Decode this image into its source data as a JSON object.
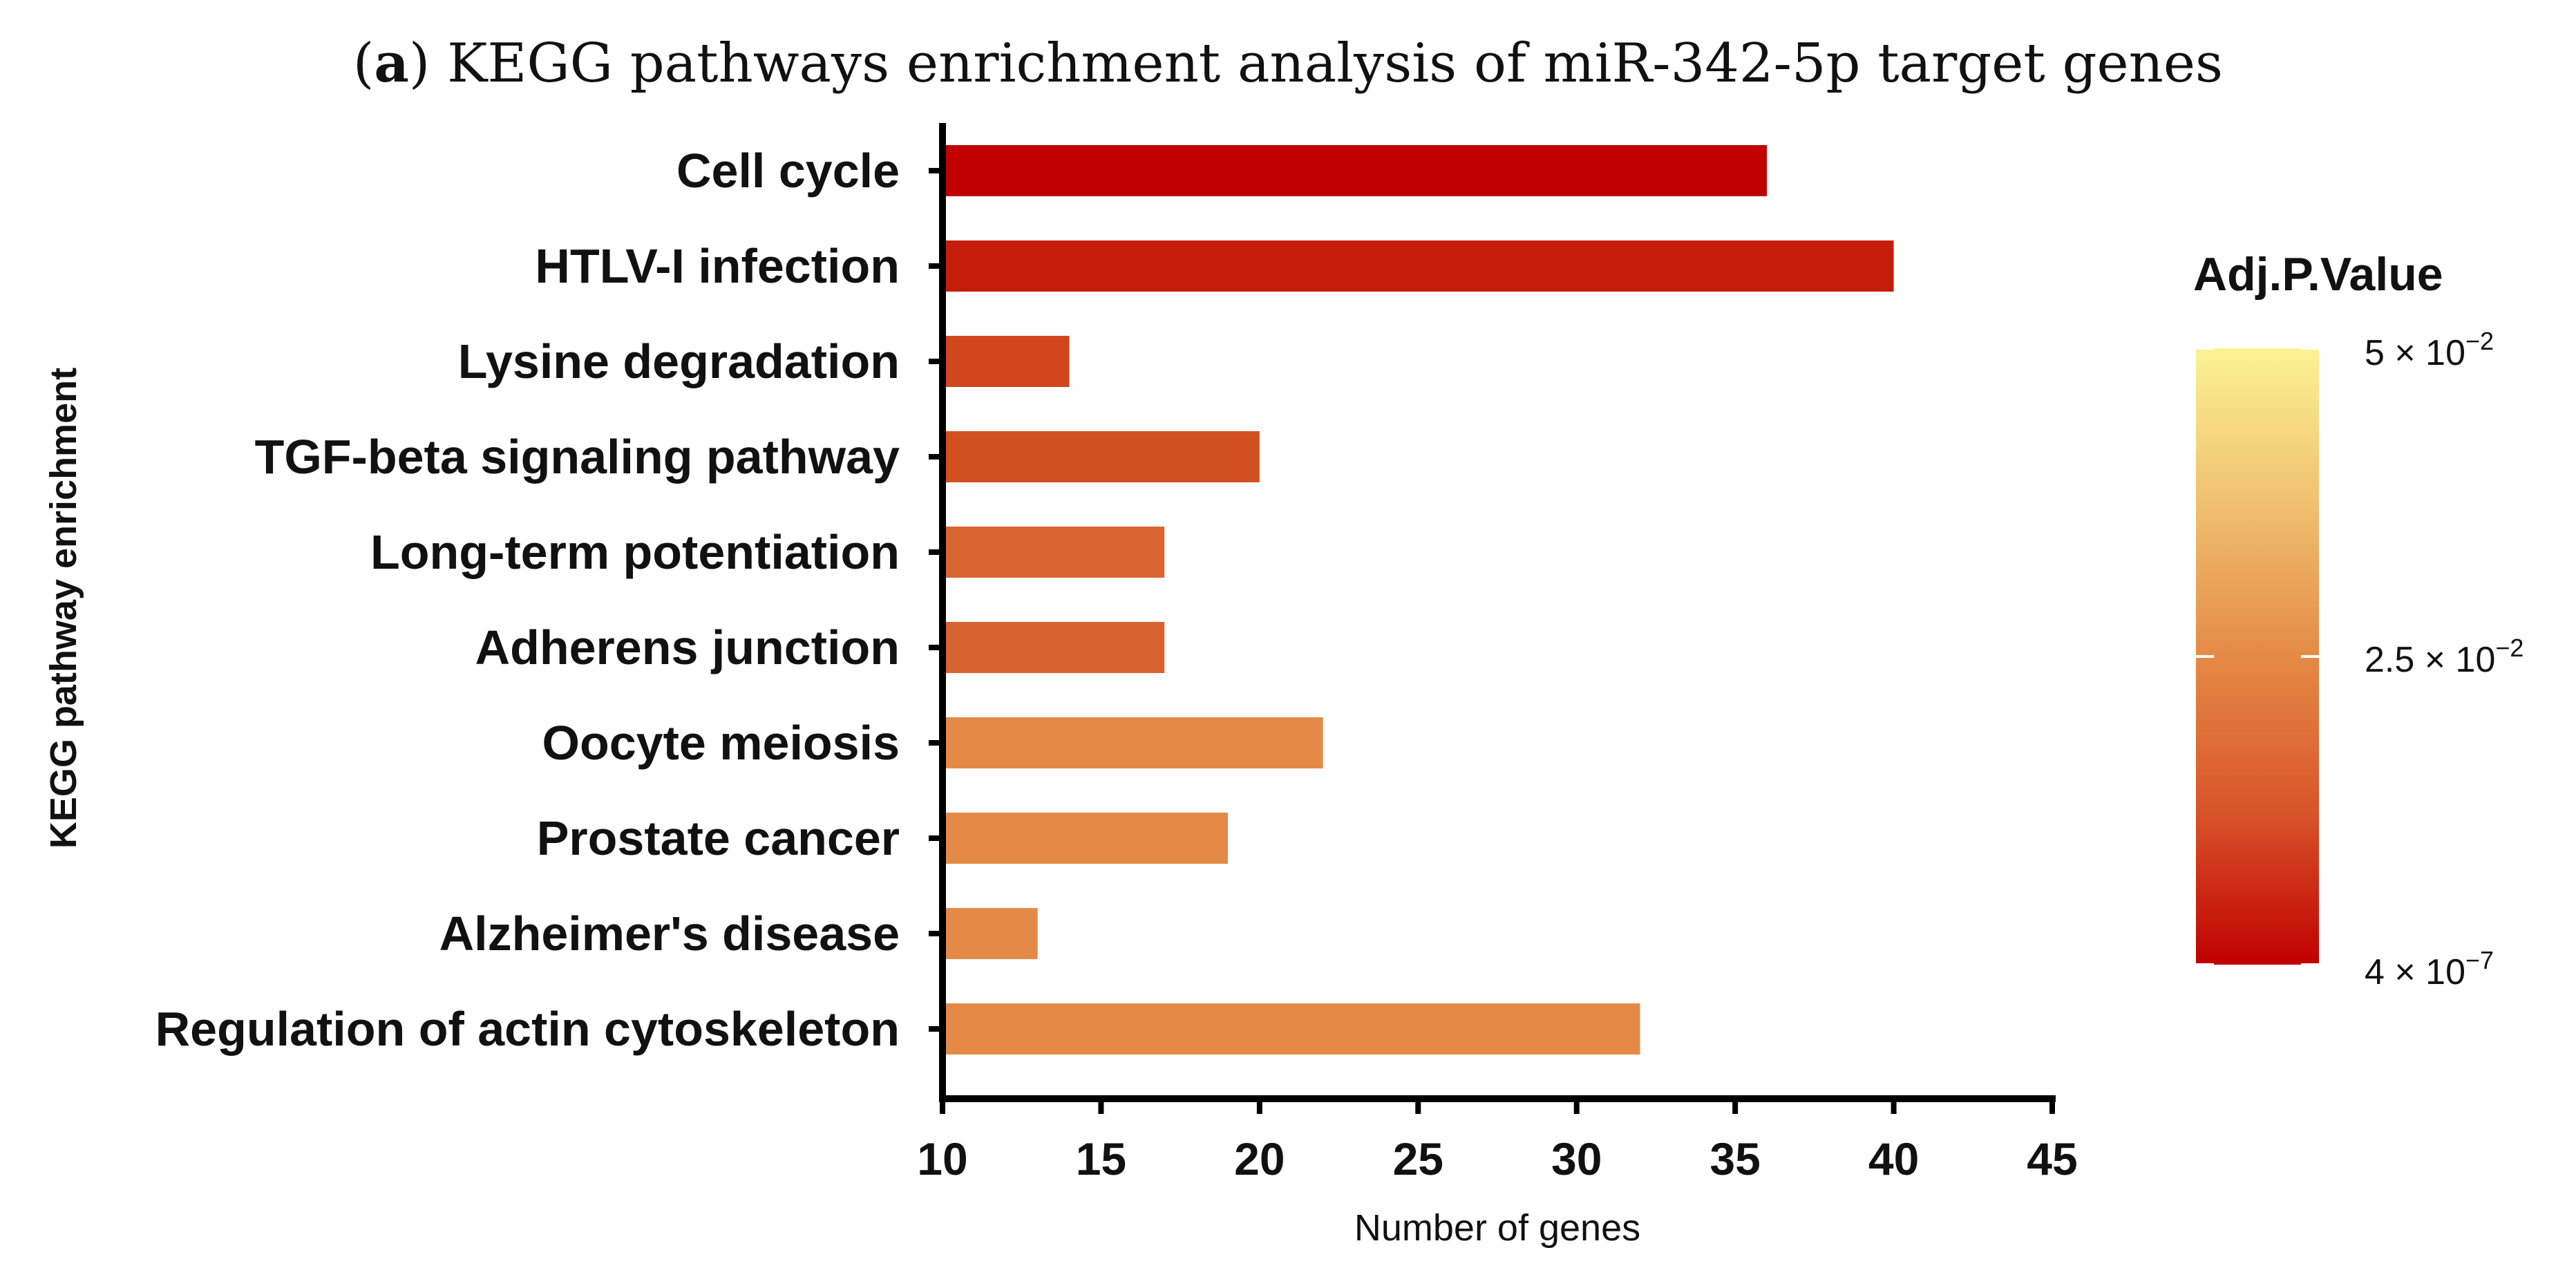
{
  "chart_data": {
    "type": "bar",
    "orientation": "horizontal",
    "title": {
      "prefix": "(",
      "letter": "a",
      "suffix": ") KEGG pathways enrichment analysis of miR-342-5p target genes"
    },
    "xlabel": "Number of genes",
    "ylabel": "KEGG pathway enrichment",
    "xlim": [
      10,
      45
    ],
    "xticks": [
      "10",
      "15",
      "20",
      "25",
      "30",
      "35",
      "40",
      "45"
    ],
    "categories": [
      "Cell cycle",
      "HTLV-I infection",
      "Lysine degradation",
      "TGF-beta signaling pathway",
      "Long-term potentiation",
      "Adherens junction",
      "Oocyte meiosis",
      "Prostate cancer",
      "Alzheimer's disease",
      "Regulation of actin cytoskeleton"
    ],
    "values": [
      36,
      40,
      14,
      20,
      17,
      17,
      22,
      19,
      13,
      32
    ],
    "bar_colors": [
      "#c00000",
      "#c41e0a",
      "#d2461e",
      "#d2501f",
      "#da6430",
      "#d96330",
      "#e48a46",
      "#e48a46",
      "#e48a46",
      "#e48a46"
    ],
    "legend": {
      "title": "Adj.P.Value",
      "ticks": [
        {
          "mantissa": "5 × 10",
          "exponent": "−2"
        },
        {
          "mantissa": "2.5 × 10",
          "exponent": "−2"
        },
        {
          "mantissa": "4 × 10",
          "exponent": "−7"
        }
      ],
      "gradient": [
        "#c00000",
        "#d9552a",
        "#e48a46",
        "#f0c070",
        "#fbf393"
      ]
    }
  }
}
